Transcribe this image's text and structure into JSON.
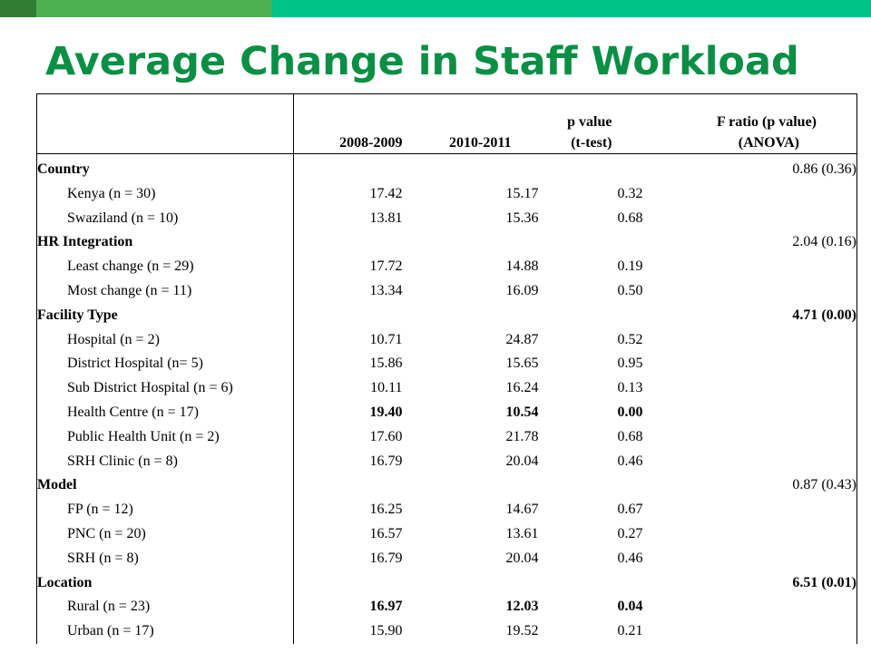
{
  "theme": {
    "bar_dark": "#2f7d32",
    "bar_mid": "#4caf50",
    "bar_light": "#00c389",
    "title_color": "#0a8f45"
  },
  "slide": {
    "title": "Average Change in Staff Workload"
  },
  "table": {
    "headers": {
      "label": "",
      "y1": "2008-2009",
      "y2": "2010-2011",
      "p_line1": "p value",
      "p_line2": "(t-test)",
      "f_line1": "F ratio (p value)",
      "f_line2": "(ANOVA)"
    },
    "rows": [
      {
        "type": "group",
        "label": "Country",
        "y1": "",
        "y2": "",
        "p": "",
        "f": "0.86  (0.36)",
        "bold": false
      },
      {
        "type": "item",
        "label": "Kenya (n = 30)",
        "y1": "17.42",
        "y2": "15.17",
        "p": "0.32",
        "f": "",
        "bold": false
      },
      {
        "type": "item",
        "label": "Swaziland (n = 10)",
        "y1": "13.81",
        "y2": "15.36",
        "p": "0.68",
        "f": "",
        "bold": false
      },
      {
        "type": "group",
        "label": "HR Integration",
        "y1": "",
        "y2": "",
        "p": "",
        "f": "2.04  (0.16)",
        "bold": false
      },
      {
        "type": "item",
        "label": "Least change (n = 29)",
        "y1": "17.72",
        "y2": "14.88",
        "p": "0.19",
        "f": "",
        "bold": false
      },
      {
        "type": "item",
        "label": "Most change (n = 11)",
        "y1": "13.34",
        "y2": "16.09",
        "p": "0.50",
        "f": "",
        "bold": false
      },
      {
        "type": "group",
        "label": "Facility Type",
        "y1": "",
        "y2": "",
        "p": "",
        "f": "4.71  (0.00)",
        "bold": true
      },
      {
        "type": "item",
        "label": "Hospital (n = 2)",
        "y1": "10.71",
        "y2": "24.87",
        "p": "0.52",
        "f": "",
        "bold": false
      },
      {
        "type": "item",
        "label": "District Hospital (n= 5)",
        "y1": "15.86",
        "y2": "15.65",
        "p": "0.95",
        "f": "",
        "bold": false
      },
      {
        "type": "item",
        "label": "Sub District Hospital (n = 6)",
        "y1": "10.11",
        "y2": "16.24",
        "p": "0.13",
        "f": "",
        "bold": false
      },
      {
        "type": "item",
        "label": "Health Centre (n = 17)",
        "y1": "19.40",
        "y2": "10.54",
        "p": "0.00",
        "f": "",
        "bold": true
      },
      {
        "type": "item",
        "label": "Public Health Unit (n = 2)",
        "y1": "17.60",
        "y2": "21.78",
        "p": "0.68",
        "f": "",
        "bold": false
      },
      {
        "type": "item",
        "label": "SRH Clinic (n = 8)",
        "y1": "16.79",
        "y2": "20.04",
        "p": "0.46",
        "f": "",
        "bold": false
      },
      {
        "type": "group",
        "label": "Model",
        "y1": "",
        "y2": "",
        "p": "",
        "f": "0.87  (0.43)",
        "bold": false
      },
      {
        "type": "item",
        "label": "FP (n = 12)",
        "y1": "16.25",
        "y2": "14.67",
        "p": "0.67",
        "f": "",
        "bold": false
      },
      {
        "type": "item",
        "label": "PNC (n = 20)",
        "y1": "16.57",
        "y2": "13.61",
        "p": "0.27",
        "f": "",
        "bold": false
      },
      {
        "type": "item",
        "label": "SRH (n = 8)",
        "y1": "16.79",
        "y2": "20.04",
        "p": "0.46",
        "f": "",
        "bold": false
      },
      {
        "type": "group",
        "label": "Location",
        "y1": "",
        "y2": "",
        "p": "",
        "f": "6.51  (0.01)",
        "bold": true
      },
      {
        "type": "item",
        "label": "Rural (n = 23)",
        "y1": "16.97",
        "y2": "12.03",
        "p": "0.04",
        "f": "",
        "bold": true
      },
      {
        "type": "item",
        "label": "Urban (n = 17)",
        "y1": "15.90",
        "y2": "19.52",
        "p": "0.21",
        "f": "",
        "bold": false
      }
    ]
  }
}
